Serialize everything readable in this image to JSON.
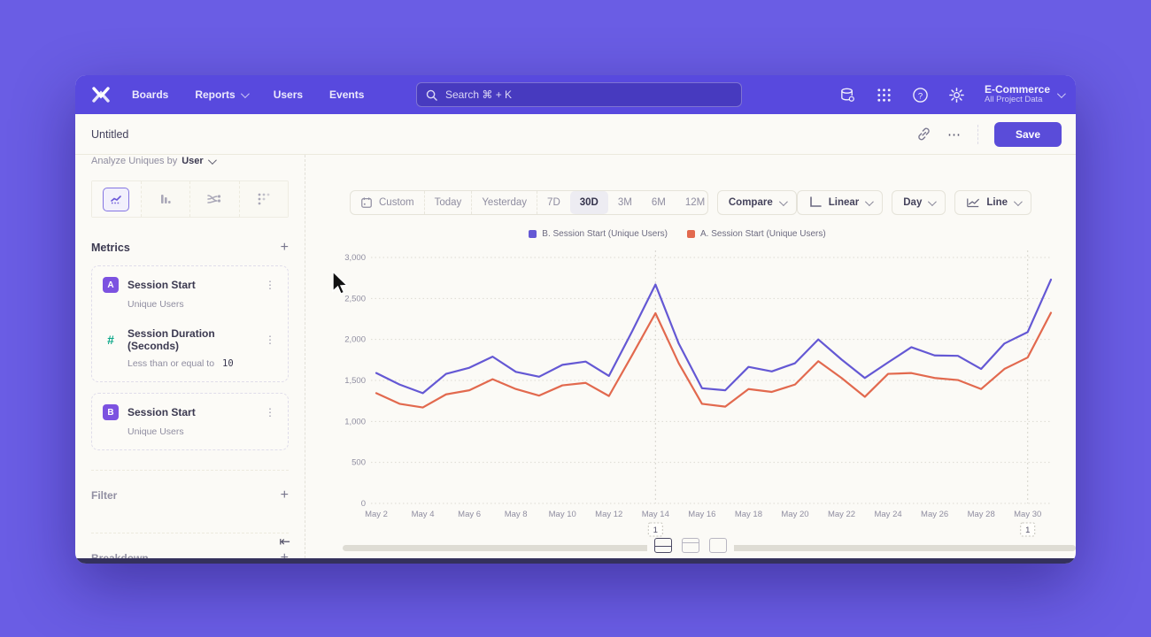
{
  "icons": {
    "add": "+",
    "kebab": "⋮",
    "more": "⋯",
    "collapse": "⇤"
  },
  "navbar": {
    "items": [
      "Boards",
      "Reports",
      "Users",
      "Events"
    ],
    "search": {
      "placeholder": "Search   ⌘ + K"
    },
    "project": {
      "name": "E-Commerce",
      "scope": "All Project Data"
    }
  },
  "header": {
    "title": "Untitled",
    "save_label": "Save"
  },
  "sidebar": {
    "analyze_prefix": "Analyze Uniques by",
    "analyze_value": "User",
    "metrics_title": "Metrics",
    "metrics": [
      {
        "badge": "A",
        "name": "Session Start",
        "subtitle": "Unique Users"
      },
      {
        "badge": "#",
        "name": "Session Duration (Seconds)",
        "subtitle_prefix": "Less than or equal to",
        "subtitle_value": "10"
      },
      {
        "badge": "B",
        "name": "Session Start",
        "subtitle": "Unique Users"
      }
    ],
    "sections": [
      {
        "label": "Filter"
      },
      {
        "label": "Breakdown"
      }
    ]
  },
  "toolbar": {
    "ranges": [
      "Custom",
      "Today",
      "Yesterday",
      "7D",
      "30D",
      "3M",
      "6M",
      "12M"
    ],
    "active_range": "30D",
    "compare_label": "Compare",
    "scale_label": "Linear",
    "interval_label": "Day",
    "chart_type_label": "Line"
  },
  "chart_data": {
    "type": "line",
    "title": "",
    "xlabel": "",
    "ylabel": "",
    "ylim": [
      0,
      3000
    ],
    "yticks": [
      0,
      500,
      1000,
      1500,
      2000,
      2500,
      3000
    ],
    "grid": "horizontal-dotted",
    "legend_position": "top-center",
    "x": [
      "May 2",
      "May 3",
      "May 4",
      "May 5",
      "May 6",
      "May 7",
      "May 8",
      "May 9",
      "May 10",
      "May 11",
      "May 12",
      "May 13",
      "May 14",
      "May 15",
      "May 16",
      "May 17",
      "May 18",
      "May 19",
      "May 20",
      "May 21",
      "May 22",
      "May 23",
      "May 24",
      "May 25",
      "May 26",
      "May 27",
      "May 28",
      "May 29",
      "May 30",
      "May 31"
    ],
    "series": [
      {
        "name": "B. Session Start (Unique Users)",
        "color": "#6458d4",
        "values": [
          1590,
          1450,
          1345,
          1580,
          1655,
          1790,
          1605,
          1545,
          1690,
          1730,
          1555,
          2100,
          2670,
          1950,
          1405,
          1380,
          1665,
          1610,
          1710,
          2000,
          1755,
          1530,
          1720,
          1905,
          1805,
          1800,
          1640,
          1950,
          2090,
          2730
        ]
      },
      {
        "name": "A. Session Start (Unique Users)",
        "color": "#e2694e",
        "values": [
          1345,
          1215,
          1170,
          1330,
          1380,
          1515,
          1395,
          1315,
          1440,
          1470,
          1310,
          1810,
          2320,
          1710,
          1215,
          1180,
          1395,
          1360,
          1450,
          1735,
          1530,
          1300,
          1580,
          1590,
          1530,
          1505,
          1395,
          1640,
          1780,
          2325
        ]
      }
    ],
    "annotations": [
      {
        "x": "May 14",
        "label": "1"
      },
      {
        "x": "May 30",
        "label": "1"
      }
    ]
  }
}
